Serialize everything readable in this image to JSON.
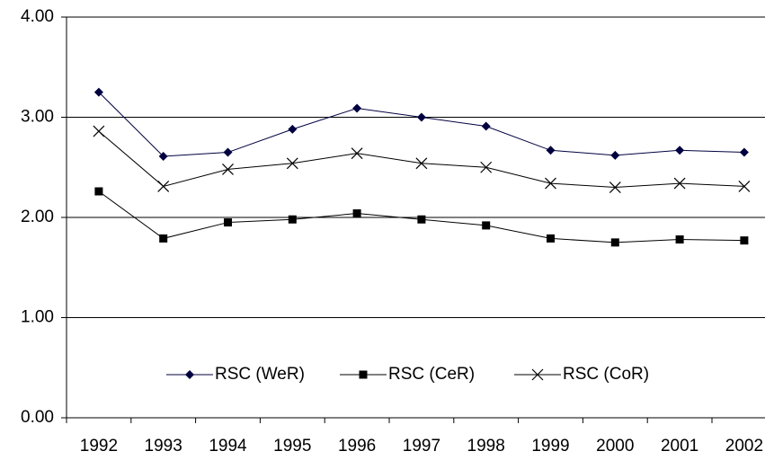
{
  "chart_data": {
    "type": "line",
    "categories": [
      "1992",
      "1993",
      "1994",
      "1995",
      "1996",
      "1997",
      "1998",
      "1999",
      "2000",
      "2001",
      "2002"
    ],
    "series": [
      {
        "name": "RSC (WeR)",
        "color": "#000040",
        "marker": "diamond",
        "values": [
          3.25,
          2.61,
          2.65,
          2.88,
          3.09,
          3.0,
          2.91,
          2.67,
          2.62,
          2.67,
          2.65
        ]
      },
      {
        "name": "RSC (CeR)",
        "color": "#000000",
        "marker": "square",
        "values": [
          2.26,
          1.79,
          1.95,
          1.98,
          2.04,
          1.98,
          1.92,
          1.79,
          1.75,
          1.78,
          1.77
        ]
      },
      {
        "name": "RSC (CoR)",
        "color": "#000000",
        "marker": "x",
        "values": [
          2.86,
          2.31,
          2.48,
          2.54,
          2.64,
          2.54,
          2.5,
          2.34,
          2.3,
          2.34,
          2.31
        ]
      }
    ],
    "ylim": [
      0,
      4
    ],
    "yticks": [
      {
        "value": 0,
        "label": "0.00"
      },
      {
        "value": 1,
        "label": "1.00"
      },
      {
        "value": 2,
        "label": "2.00"
      },
      {
        "value": 3,
        "label": "3.00"
      },
      {
        "value": 4,
        "label": "4.00"
      }
    ],
    "grid": true,
    "legend": "bottom"
  }
}
